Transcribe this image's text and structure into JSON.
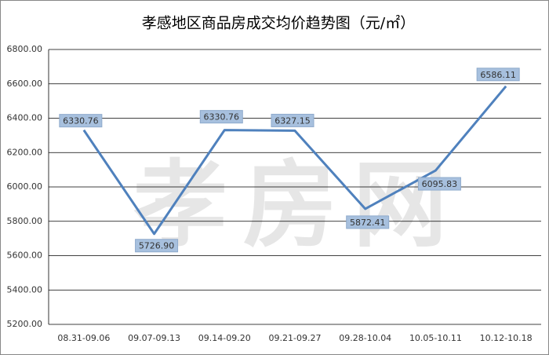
{
  "chart_data": {
    "type": "line",
    "title": "孝感地区商品房成交均价趋势图（元/㎡）",
    "watermark": "孝房网",
    "categories": [
      "08.31-09.06",
      "09.07-09.13",
      "09.14-09.20",
      "09.21-09.27",
      "09.28-10.04",
      "10.05-10.11",
      "10.12-10.18"
    ],
    "values": [
      6330.76,
      5726.9,
      6330.76,
      6327.15,
      5872.41,
      6095.83,
      6586.11
    ],
    "value_labels": [
      "6330.76",
      "5726.90",
      "6330.76",
      "6327.15",
      "5872.41",
      "6095.83",
      "6586.11"
    ],
    "color": "#4f81bd",
    "ylim": [
      5200,
      6800
    ],
    "yticks": [
      {
        "value": 5200,
        "label": "5200.00"
      },
      {
        "value": 5400,
        "label": "5400.00"
      },
      {
        "value": 5600,
        "label": "5600.00"
      },
      {
        "value": 5800,
        "label": "5800.00"
      },
      {
        "value": 6000,
        "label": "6000.00"
      },
      {
        "value": 6200,
        "label": "6200.00"
      },
      {
        "value": 6400,
        "label": "6400.00"
      },
      {
        "value": 6600,
        "label": "6600.00"
      },
      {
        "value": 6800,
        "label": "6800.00"
      }
    ],
    "grid": true
  }
}
